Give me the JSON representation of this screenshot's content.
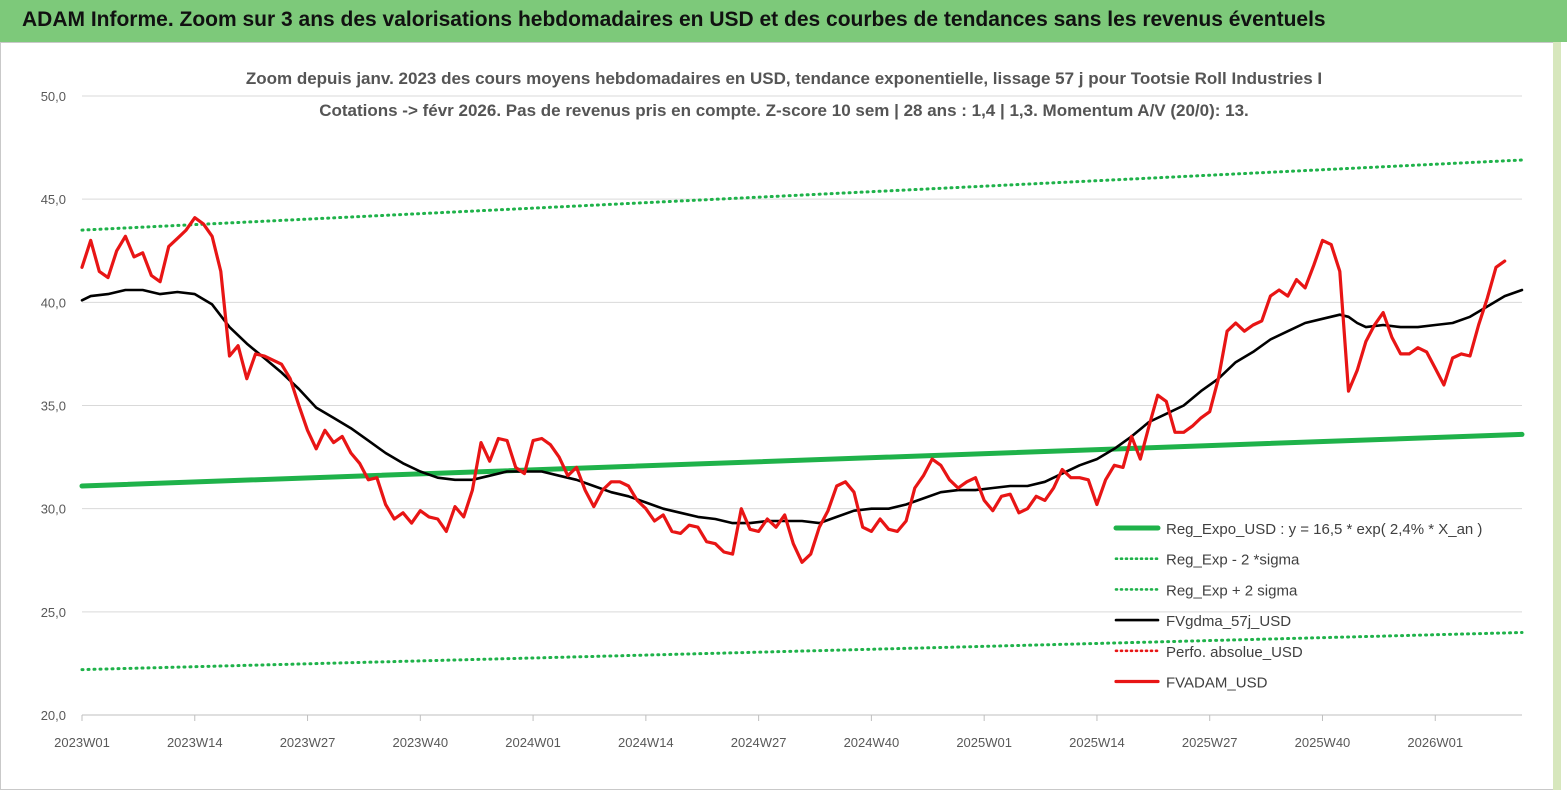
{
  "header": {
    "banner_title": "ADAM Informe. Zoom sur 3 ans des valorisations hebdomadaires en USD et des courbes de tendances sans les revenus éventuels"
  },
  "colors": {
    "banner_bg": "#7dc97a",
    "regression": "#1fb24a",
    "sigma_bands": "#1fb24a",
    "fvgdma": "#000000",
    "fvadam": "#e81515",
    "perfo": "#e81515"
  },
  "chart_data": {
    "type": "line",
    "title": "Zoom depuis janv. 2023 des cours moyens hebdomadaires en USD, tendance exponentielle, lissage 57 j pour Tootsie Roll Industries I",
    "subtitle": "Cotations -> févr 2026.  Pas de revenus pris en compte. Z-score 10 sem  | 28 ans : 1,4 | 1,3. Momentum A/V (20/0): 13.",
    "xlabel": "",
    "ylabel": "",
    "ylim": [
      20,
      50
    ],
    "yticks": [
      "20,0",
      "25,0",
      "30,0",
      "35,0",
      "40,0",
      "45,0",
      "50,0"
    ],
    "xlim": [
      0,
      166
    ],
    "x_tick_labels": [
      {
        "label": "2023W01",
        "week": 0
      },
      {
        "label": "2023W14",
        "week": 13
      },
      {
        "label": "2023W27",
        "week": 26
      },
      {
        "label": "2023W40",
        "week": 39
      },
      {
        "label": "2024W01",
        "week": 52
      },
      {
        "label": "2024W14",
        "week": 65
      },
      {
        "label": "2024W27",
        "week": 78
      },
      {
        "label": "2024W40",
        "week": 91
      },
      {
        "label": "2025W01",
        "week": 104
      },
      {
        "label": "2025W14",
        "week": 117
      },
      {
        "label": "2025W27",
        "week": 130
      },
      {
        "label": "2025W40",
        "week": 143
      },
      {
        "label": "2026W01",
        "week": 156
      }
    ],
    "grid": "horizontal",
    "legend_position": "bottom-right",
    "series": [
      {
        "name": "Reg_Expo_USD : y = 16,5 * exp( 2,4% *  X_an )",
        "style": "thick-solid",
        "color": "#1fb24a",
        "points": [
          [
            0,
            31.1
          ],
          [
            166,
            33.6
          ]
        ]
      },
      {
        "name": "Reg_Exp - 2 *sigma",
        "style": "dotted",
        "color": "#1fb24a",
        "points": [
          [
            0,
            22.2
          ],
          [
            166,
            24.0
          ]
        ]
      },
      {
        "name": "Reg_Exp + 2 sigma",
        "style": "dotted",
        "color": "#1fb24a",
        "points": [
          [
            0,
            43.5
          ],
          [
            166,
            46.9
          ]
        ]
      },
      {
        "name": "FVgdma_57j_USD",
        "style": "solid",
        "color": "#000000",
        "points": [
          [
            0,
            40.1
          ],
          [
            1,
            40.3
          ],
          [
            3,
            40.4
          ],
          [
            5,
            40.6
          ],
          [
            7,
            40.6
          ],
          [
            9,
            40.4
          ],
          [
            11,
            40.5
          ],
          [
            13,
            40.4
          ],
          [
            15,
            39.9
          ],
          [
            17,
            38.8
          ],
          [
            19,
            38.0
          ],
          [
            21,
            37.3
          ],
          [
            23,
            36.6
          ],
          [
            25,
            35.8
          ],
          [
            27,
            34.9
          ],
          [
            29,
            34.4
          ],
          [
            31,
            33.9
          ],
          [
            33,
            33.3
          ],
          [
            35,
            32.7
          ],
          [
            37,
            32.2
          ],
          [
            39,
            31.8
          ],
          [
            41,
            31.5
          ],
          [
            43,
            31.4
          ],
          [
            45,
            31.4
          ],
          [
            47,
            31.6
          ],
          [
            49,
            31.8
          ],
          [
            51,
            31.8
          ],
          [
            53,
            31.8
          ],
          [
            55,
            31.6
          ],
          [
            57,
            31.4
          ],
          [
            59,
            31.1
          ],
          [
            61,
            30.8
          ],
          [
            63,
            30.6
          ],
          [
            65,
            30.3
          ],
          [
            67,
            30.0
          ],
          [
            69,
            29.8
          ],
          [
            71,
            29.6
          ],
          [
            73,
            29.5
          ],
          [
            75,
            29.3
          ],
          [
            77,
            29.3
          ],
          [
            79,
            29.4
          ],
          [
            81,
            29.4
          ],
          [
            83,
            29.4
          ],
          [
            85,
            29.3
          ],
          [
            87,
            29.6
          ],
          [
            89,
            29.9
          ],
          [
            91,
            30.0
          ],
          [
            93,
            30.0
          ],
          [
            95,
            30.2
          ],
          [
            97,
            30.5
          ],
          [
            99,
            30.8
          ],
          [
            101,
            30.9
          ],
          [
            103,
            30.9
          ],
          [
            105,
            31.0
          ],
          [
            107,
            31.1
          ],
          [
            109,
            31.1
          ],
          [
            111,
            31.3
          ],
          [
            113,
            31.7
          ],
          [
            115,
            32.1
          ],
          [
            117,
            32.4
          ],
          [
            119,
            32.9
          ],
          [
            121,
            33.5
          ],
          [
            123,
            34.2
          ],
          [
            125,
            34.6
          ],
          [
            127,
            35.0
          ],
          [
            129,
            35.7
          ],
          [
            131,
            36.3
          ],
          [
            133,
            37.1
          ],
          [
            135,
            37.6
          ],
          [
            137,
            38.2
          ],
          [
            139,
            38.6
          ],
          [
            141,
            39.0
          ],
          [
            143,
            39.2
          ],
          [
            145,
            39.4
          ],
          [
            146,
            39.3
          ],
          [
            147,
            39.0
          ],
          [
            148,
            38.8
          ],
          [
            150,
            38.9
          ],
          [
            152,
            38.8
          ],
          [
            154,
            38.8
          ],
          [
            156,
            38.9
          ],
          [
            158,
            39.0
          ],
          [
            160,
            39.3
          ],
          [
            162,
            39.8
          ],
          [
            164,
            40.3
          ],
          [
            166,
            40.6
          ]
        ]
      },
      {
        "name": "Perfo. absolue_USD",
        "style": "dotted",
        "color": "#e81515",
        "points": []
      },
      {
        "name": "FVADAM_USD",
        "style": "thick-solid",
        "color": "#e81515",
        "points": [
          [
            0,
            41.7
          ],
          [
            1,
            43.0
          ],
          [
            2,
            41.5
          ],
          [
            3,
            41.2
          ],
          [
            4,
            42.5
          ],
          [
            5,
            43.2
          ],
          [
            6,
            42.2
          ],
          [
            7,
            42.4
          ],
          [
            8,
            41.3
          ],
          [
            9,
            41.0
          ],
          [
            10,
            42.7
          ],
          [
            11,
            43.1
          ],
          [
            12,
            43.5
          ],
          [
            13,
            44.1
          ],
          [
            14,
            43.8
          ],
          [
            15,
            43.2
          ],
          [
            16,
            41.5
          ],
          [
            17,
            37.4
          ],
          [
            18,
            37.9
          ],
          [
            19,
            36.3
          ],
          [
            20,
            37.5
          ],
          [
            21,
            37.4
          ],
          [
            22,
            37.2
          ],
          [
            23,
            37.0
          ],
          [
            24,
            36.3
          ],
          [
            25,
            35.0
          ],
          [
            26,
            33.8
          ],
          [
            27,
            32.9
          ],
          [
            28,
            33.8
          ],
          [
            29,
            33.2
          ],
          [
            30,
            33.5
          ],
          [
            31,
            32.7
          ],
          [
            32,
            32.2
          ],
          [
            33,
            31.4
          ],
          [
            34,
            31.5
          ],
          [
            35,
            30.2
          ],
          [
            36,
            29.5
          ],
          [
            37,
            29.8
          ],
          [
            38,
            29.3
          ],
          [
            39,
            29.9
          ],
          [
            40,
            29.6
          ],
          [
            41,
            29.5
          ],
          [
            42,
            28.9
          ],
          [
            43,
            30.1
          ],
          [
            44,
            29.6
          ],
          [
            45,
            30.9
          ],
          [
            46,
            33.2
          ],
          [
            47,
            32.3
          ],
          [
            48,
            33.4
          ],
          [
            49,
            33.3
          ],
          [
            50,
            32.0
          ],
          [
            51,
            31.7
          ],
          [
            52,
            33.3
          ],
          [
            53,
            33.4
          ],
          [
            54,
            33.1
          ],
          [
            55,
            32.5
          ],
          [
            56,
            31.6
          ],
          [
            57,
            32.0
          ],
          [
            58,
            30.9
          ],
          [
            59,
            30.1
          ],
          [
            60,
            30.9
          ],
          [
            61,
            31.3
          ],
          [
            62,
            31.3
          ],
          [
            63,
            31.1
          ],
          [
            64,
            30.4
          ],
          [
            65,
            30.0
          ],
          [
            66,
            29.4
          ],
          [
            67,
            29.7
          ],
          [
            68,
            28.9
          ],
          [
            69,
            28.8
          ],
          [
            70,
            29.2
          ],
          [
            71,
            29.1
          ],
          [
            72,
            28.4
          ],
          [
            73,
            28.3
          ],
          [
            74,
            27.9
          ],
          [
            75,
            27.8
          ],
          [
            76,
            30.0
          ],
          [
            77,
            29.0
          ],
          [
            78,
            28.9
          ],
          [
            79,
            29.5
          ],
          [
            80,
            29.1
          ],
          [
            81,
            29.7
          ],
          [
            82,
            28.3
          ],
          [
            83,
            27.4
          ],
          [
            84,
            27.8
          ],
          [
            85,
            29.1
          ],
          [
            86,
            29.9
          ],
          [
            87,
            31.1
          ],
          [
            88,
            31.3
          ],
          [
            89,
            30.8
          ],
          [
            90,
            29.1
          ],
          [
            91,
            28.9
          ],
          [
            92,
            29.5
          ],
          [
            93,
            29.0
          ],
          [
            94,
            28.9
          ],
          [
            95,
            29.4
          ],
          [
            96,
            31.0
          ],
          [
            97,
            31.6
          ],
          [
            98,
            32.4
          ],
          [
            99,
            32.1
          ],
          [
            100,
            31.4
          ],
          [
            101,
            31.0
          ],
          [
            102,
            31.3
          ],
          [
            103,
            31.5
          ],
          [
            104,
            30.4
          ],
          [
            105,
            29.9
          ],
          [
            106,
            30.6
          ],
          [
            107,
            30.7
          ],
          [
            108,
            29.8
          ],
          [
            109,
            30.0
          ],
          [
            110,
            30.6
          ],
          [
            111,
            30.4
          ],
          [
            112,
            31.0
          ],
          [
            113,
            31.9
          ],
          [
            114,
            31.5
          ],
          [
            115,
            31.5
          ],
          [
            116,
            31.4
          ],
          [
            117,
            30.2
          ],
          [
            118,
            31.4
          ],
          [
            119,
            32.1
          ],
          [
            120,
            32.0
          ],
          [
            121,
            33.5
          ],
          [
            122,
            32.4
          ],
          [
            123,
            34.0
          ],
          [
            124,
            35.5
          ],
          [
            125,
            35.2
          ],
          [
            126,
            33.7
          ],
          [
            127,
            33.7
          ],
          [
            128,
            34.0
          ],
          [
            129,
            34.4
          ],
          [
            130,
            34.7
          ],
          [
            131,
            36.3
          ],
          [
            132,
            38.6
          ],
          [
            133,
            39.0
          ],
          [
            134,
            38.6
          ],
          [
            135,
            38.9
          ],
          [
            136,
            39.1
          ],
          [
            137,
            40.3
          ],
          [
            138,
            40.6
          ],
          [
            139,
            40.3
          ],
          [
            140,
            41.1
          ],
          [
            141,
            40.7
          ],
          [
            142,
            41.8
          ],
          [
            143,
            43.0
          ],
          [
            144,
            42.8
          ],
          [
            145,
            41.5
          ],
          [
            146,
            35.7
          ],
          [
            147,
            36.7
          ],
          [
            148,
            38.1
          ],
          [
            149,
            38.9
          ],
          [
            150,
            39.5
          ],
          [
            151,
            38.3
          ],
          [
            152,
            37.5
          ],
          [
            153,
            37.5
          ],
          [
            154,
            37.8
          ],
          [
            155,
            37.6
          ],
          [
            156,
            36.8
          ],
          [
            157,
            36.0
          ],
          [
            158,
            37.3
          ],
          [
            159,
            37.5
          ],
          [
            160,
            37.4
          ],
          [
            161,
            38.9
          ],
          [
            162,
            40.2
          ],
          [
            163,
            41.7
          ],
          [
            164,
            42.0
          ]
        ]
      }
    ]
  }
}
